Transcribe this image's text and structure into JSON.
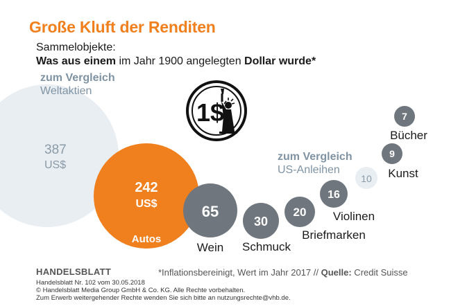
{
  "title": "Große Kluft der Renditen",
  "subtitle": {
    "line1": "Sammelobjekte:",
    "part1": "Was aus einem",
    "part2": " im Jahr 1900 angelegten ",
    "part3": "Dollar wurde*"
  },
  "comparison_stocks": {
    "heading": "zum Vergleich",
    "label": "Weltaktien"
  },
  "comparison_bonds": {
    "heading": "zum Vergleich",
    "label": "US-Anleihen"
  },
  "logo_text": "1$",
  "unit": "US$",
  "colors": {
    "accent": "#f07f1e",
    "bubble": "#6f767d",
    "comparison_bubble": "#e9eef3",
    "comparison_text": "#7f93a3"
  },
  "chart_data": {
    "type": "bubble",
    "title": "Große Kluft der Renditen",
    "series": [
      {
        "name": "Autos",
        "value": 242,
        "unit": "US$",
        "category": "collectible",
        "highlight": true
      },
      {
        "name": "Wein",
        "value": 65,
        "category": "collectible"
      },
      {
        "name": "Schmuck",
        "value": 30,
        "category": "collectible"
      },
      {
        "name": "Briefmarken",
        "value": 20,
        "category": "collectible"
      },
      {
        "name": "Violinen",
        "value": 16,
        "category": "collectible"
      },
      {
        "name": "Kunst",
        "value": 9,
        "category": "collectible"
      },
      {
        "name": "Bücher",
        "value": 7,
        "category": "collectible"
      }
    ],
    "comparisons": [
      {
        "name": "Weltaktien",
        "value": 387,
        "unit": "US$"
      },
      {
        "name": "US-Anleihen",
        "value": 10
      }
    ]
  },
  "footer": {
    "brand": "HANDELSBLATT",
    "note_prefix": "*Inflationsbereinigt, Wert im Jahr 2017 // ",
    "source_label": "Quelle:",
    "source": " Credit Suisse",
    "line1": "Handelsblatt Nr. 102 vom 30.05.2018",
    "line2": "© Handelsblatt Media Group GmbH & Co. KG. Alle Rechte vorbehalten.",
    "line3": "Zum Erwerb weitergehender Rechte wenden Sie sich bitte an nutzungsrechte@vhb.de."
  }
}
